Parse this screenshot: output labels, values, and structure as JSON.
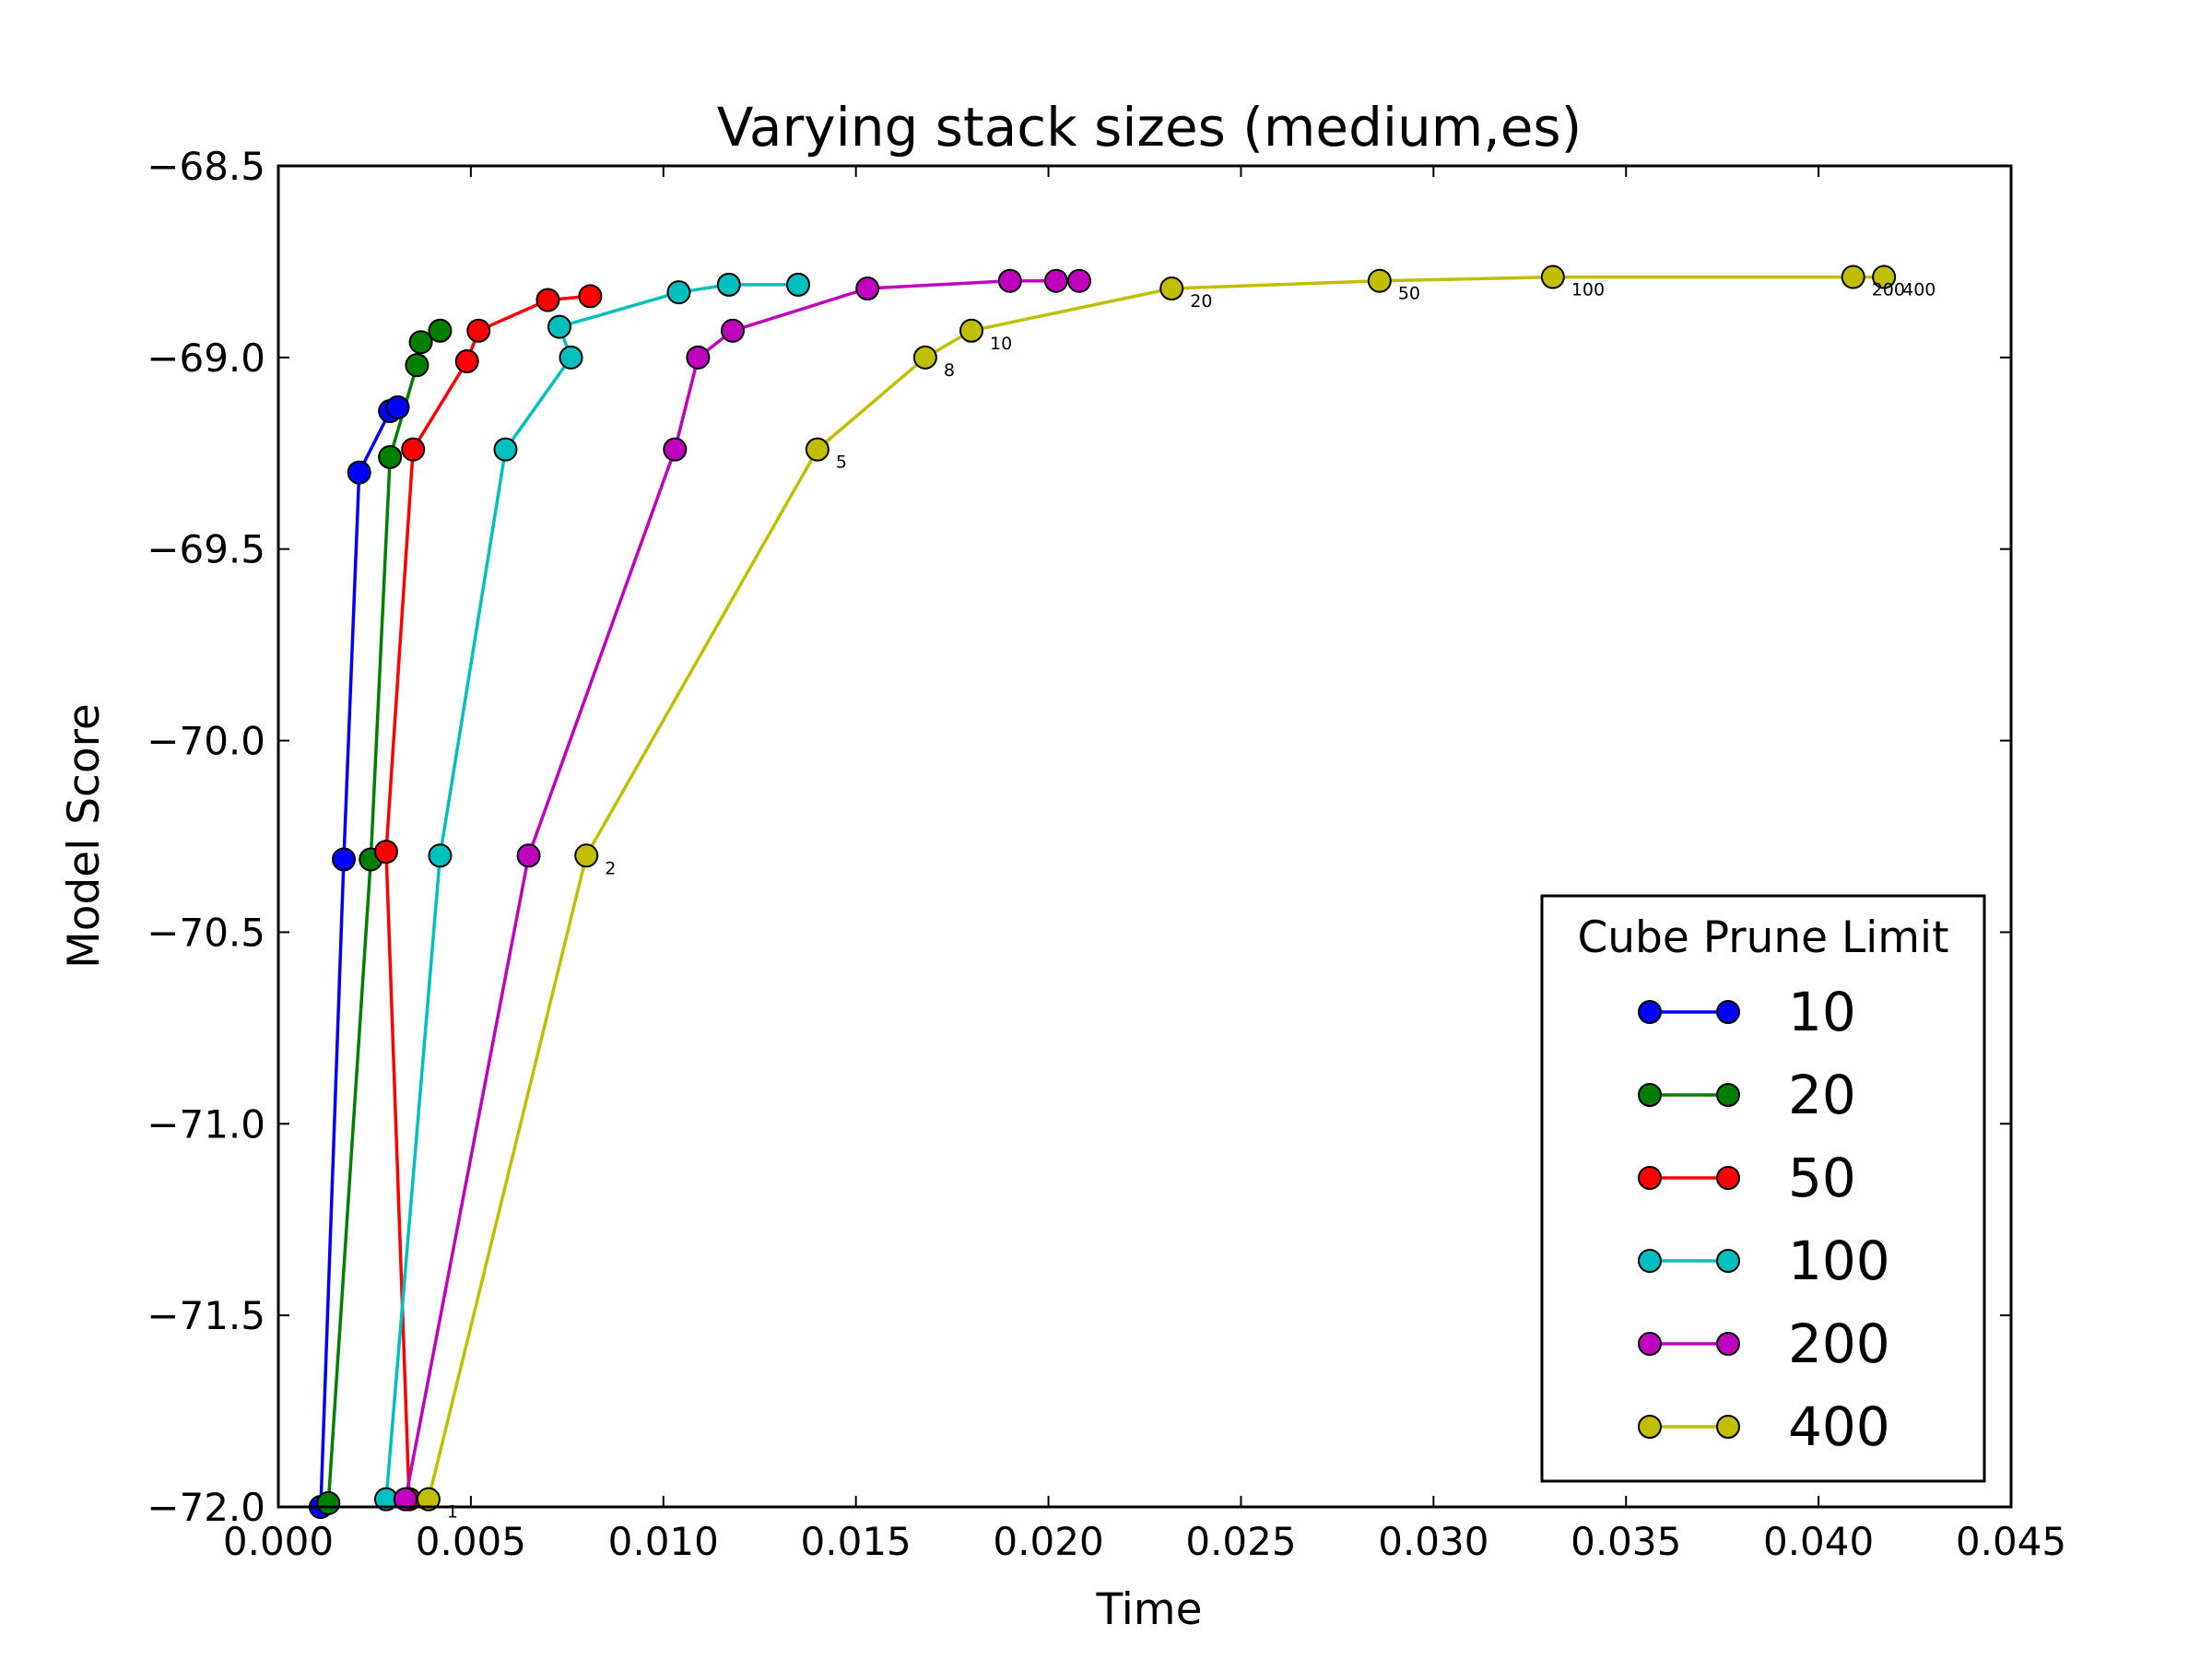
{
  "chart_data": {
    "type": "line",
    "title": "Varying stack sizes (medium,es)",
    "xlabel": "Time",
    "ylabel": "Model Score",
    "xlim": [
      0.0,
      0.045
    ],
    "ylim": [
      -72.0,
      -68.5
    ],
    "xticks": [
      "0.000",
      "0.005",
      "0.010",
      "0.015",
      "0.020",
      "0.025",
      "0.030",
      "0.035",
      "0.040",
      "0.045"
    ],
    "yticks": [
      "−68.5",
      "−69.0",
      "−69.5",
      "−70.0",
      "−70.5",
      "−71.0",
      "−71.5",
      "−72.0"
    ],
    "xtick_values": [
      0.0,
      0.005,
      0.01,
      0.015,
      0.02,
      0.025,
      0.03,
      0.035,
      0.04,
      0.045
    ],
    "ytick_values": [
      -68.5,
      -69.0,
      -69.5,
      -70.0,
      -70.5,
      -71.0,
      -71.5,
      -72.0
    ],
    "grid": false,
    "legend": {
      "title": "Cube Prune Limit",
      "position": "lower-right"
    },
    "series": [
      {
        "name": "10",
        "color": "#0000ff",
        "x": [
          0.0011,
          0.0017,
          0.0021,
          0.0029,
          0.0031
        ],
        "y": [
          -72.0,
          -70.31,
          -69.3,
          -69.14,
          -69.13
        ]
      },
      {
        "name": "20",
        "color": "#007f00",
        "x": [
          0.0013,
          0.0024,
          0.0029,
          0.0036,
          0.0037,
          0.0042
        ],
        "y": [
          -71.99,
          -70.31,
          -69.26,
          -69.02,
          -68.96,
          -68.93
        ]
      },
      {
        "name": "50",
        "color": "#ff0000",
        "x": [
          0.0034,
          0.0028,
          0.0035,
          0.0049,
          0.0052,
          0.007,
          0.0081
        ],
        "y": [
          -71.98,
          -70.29,
          -69.24,
          -69.01,
          -68.93,
          -68.85,
          -68.84
        ]
      },
      {
        "name": "100",
        "color": "#00bfbf",
        "x": [
          0.0028,
          0.0042,
          0.0059,
          0.0076,
          0.0073,
          0.0104,
          0.0117,
          0.0135
        ],
        "y": [
          -71.98,
          -70.3,
          -69.24,
          -69.0,
          -68.92,
          -68.83,
          -68.81,
          -68.81
        ]
      },
      {
        "name": "200",
        "color": "#bf00bf",
        "x": [
          0.0033,
          0.0065,
          0.0103,
          0.0109,
          0.0118,
          0.0153,
          0.019,
          0.0202,
          0.0208
        ],
        "y": [
          -71.98,
          -70.3,
          -69.24,
          -69.0,
          -68.93,
          -68.82,
          -68.8,
          -68.8,
          -68.8
        ]
      },
      {
        "name": "400",
        "color": "#bfbf00",
        "x": [
          0.0039,
          0.008,
          0.014,
          0.0168,
          0.018,
          0.0232,
          0.0286,
          0.0331,
          0.0409,
          0.0417
        ],
        "y": [
          -71.98,
          -70.3,
          -69.24,
          -69.0,
          -68.93,
          -68.82,
          -68.8,
          -68.79,
          -68.79,
          -68.79
        ],
        "point_labels": [
          "1",
          "2",
          "5",
          "8",
          "10",
          "20",
          "50",
          "100",
          "200",
          "400"
        ]
      }
    ]
  }
}
